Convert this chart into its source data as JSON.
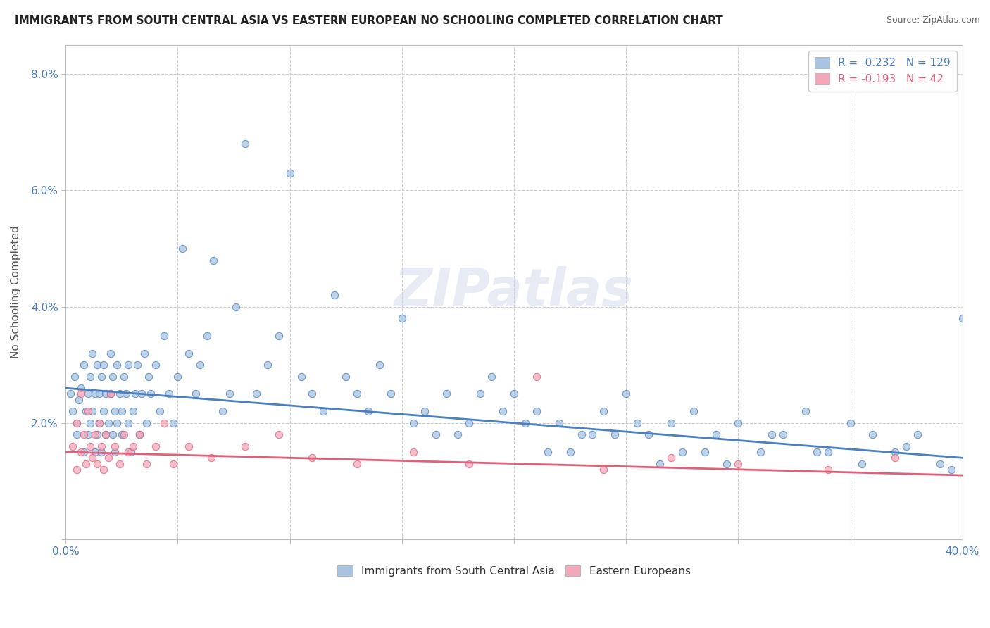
{
  "title": "IMMIGRANTS FROM SOUTH CENTRAL ASIA VS EASTERN EUROPEAN NO SCHOOLING COMPLETED CORRELATION CHART",
  "source": "Source: ZipAtlas.com",
  "ylabel": "No Schooling Completed",
  "xlim": [
    0.0,
    0.4
  ],
  "ylim": [
    0.0,
    0.085
  ],
  "xticks": [
    0.0,
    0.05,
    0.1,
    0.15,
    0.2,
    0.25,
    0.3,
    0.35,
    0.4
  ],
  "yticks": [
    0.0,
    0.02,
    0.04,
    0.06,
    0.08
  ],
  "xticklabels": [
    "0.0%",
    "",
    "",
    "",
    "",
    "",
    "",
    "",
    "40.0%"
  ],
  "yticklabels": [
    "",
    "2.0%",
    "4.0%",
    "6.0%",
    "8.0%"
  ],
  "blue_R": -0.232,
  "blue_N": 129,
  "pink_R": -0.193,
  "pink_N": 42,
  "blue_color": "#a8c4e0",
  "pink_color": "#f4a7b9",
  "blue_line_color": "#4a7fc1",
  "pink_line_color": "#e0607a",
  "legend_blue_label": "Immigrants from South Central Asia",
  "legend_pink_label": "Eastern Europeans",
  "watermark": "ZIPatlas",
  "blue_line_start_y": 0.026,
  "blue_line_end_y": 0.014,
  "pink_line_start_y": 0.015,
  "pink_line_end_y": 0.011,
  "blue_scatter_x": [
    0.002,
    0.003,
    0.004,
    0.005,
    0.005,
    0.006,
    0.007,
    0.008,
    0.008,
    0.009,
    0.01,
    0.01,
    0.011,
    0.011,
    0.012,
    0.012,
    0.013,
    0.013,
    0.014,
    0.014,
    0.015,
    0.015,
    0.016,
    0.016,
    0.017,
    0.017,
    0.018,
    0.018,
    0.019,
    0.02,
    0.02,
    0.021,
    0.021,
    0.022,
    0.022,
    0.023,
    0.023,
    0.024,
    0.025,
    0.025,
    0.026,
    0.027,
    0.028,
    0.028,
    0.029,
    0.03,
    0.031,
    0.032,
    0.033,
    0.034,
    0.035,
    0.036,
    0.037,
    0.038,
    0.04,
    0.042,
    0.044,
    0.046,
    0.048,
    0.05,
    0.052,
    0.055,
    0.058,
    0.06,
    0.063,
    0.066,
    0.07,
    0.073,
    0.076,
    0.08,
    0.085,
    0.09,
    0.095,
    0.1,
    0.105,
    0.11,
    0.115,
    0.12,
    0.13,
    0.14,
    0.15,
    0.16,
    0.17,
    0.18,
    0.19,
    0.2,
    0.21,
    0.22,
    0.23,
    0.24,
    0.25,
    0.26,
    0.27,
    0.28,
    0.29,
    0.3,
    0.31,
    0.32,
    0.33,
    0.34,
    0.35,
    0.36,
    0.37,
    0.38,
    0.39,
    0.4,
    0.155,
    0.175,
    0.195,
    0.215,
    0.235,
    0.255,
    0.275,
    0.295,
    0.315,
    0.335,
    0.355,
    0.375,
    0.395,
    0.145,
    0.165,
    0.185,
    0.205,
    0.225,
    0.245,
    0.265,
    0.285,
    0.125,
    0.135
  ],
  "blue_scatter_y": [
    0.025,
    0.022,
    0.028,
    0.02,
    0.018,
    0.024,
    0.026,
    0.03,
    0.015,
    0.022,
    0.025,
    0.018,
    0.028,
    0.02,
    0.032,
    0.022,
    0.025,
    0.015,
    0.03,
    0.018,
    0.025,
    0.02,
    0.028,
    0.015,
    0.022,
    0.03,
    0.018,
    0.025,
    0.02,
    0.025,
    0.032,
    0.018,
    0.028,
    0.022,
    0.015,
    0.03,
    0.02,
    0.025,
    0.022,
    0.018,
    0.028,
    0.025,
    0.02,
    0.03,
    0.015,
    0.022,
    0.025,
    0.03,
    0.018,
    0.025,
    0.032,
    0.02,
    0.028,
    0.025,
    0.03,
    0.022,
    0.035,
    0.025,
    0.02,
    0.028,
    0.05,
    0.032,
    0.025,
    0.03,
    0.035,
    0.048,
    0.022,
    0.025,
    0.04,
    0.068,
    0.025,
    0.03,
    0.035,
    0.063,
    0.028,
    0.025,
    0.022,
    0.042,
    0.025,
    0.03,
    0.038,
    0.022,
    0.025,
    0.02,
    0.028,
    0.025,
    0.022,
    0.02,
    0.018,
    0.022,
    0.025,
    0.018,
    0.02,
    0.022,
    0.018,
    0.02,
    0.015,
    0.018,
    0.022,
    0.015,
    0.02,
    0.018,
    0.015,
    0.018,
    0.013,
    0.038,
    0.02,
    0.018,
    0.022,
    0.015,
    0.018,
    0.02,
    0.015,
    0.013,
    0.018,
    0.015,
    0.013,
    0.016,
    0.012,
    0.025,
    0.018,
    0.025,
    0.02,
    0.015,
    0.018,
    0.013,
    0.015,
    0.028,
    0.022
  ],
  "pink_scatter_x": [
    0.003,
    0.005,
    0.007,
    0.008,
    0.009,
    0.01,
    0.011,
    0.012,
    0.013,
    0.014,
    0.015,
    0.016,
    0.017,
    0.018,
    0.019,
    0.02,
    0.022,
    0.024,
    0.026,
    0.028,
    0.03,
    0.033,
    0.036,
    0.04,
    0.044,
    0.048,
    0.055,
    0.065,
    0.08,
    0.095,
    0.11,
    0.13,
    0.155,
    0.18,
    0.21,
    0.24,
    0.27,
    0.3,
    0.34,
    0.37,
    0.005,
    0.007
  ],
  "pink_scatter_y": [
    0.016,
    0.02,
    0.015,
    0.018,
    0.013,
    0.022,
    0.016,
    0.014,
    0.018,
    0.013,
    0.02,
    0.016,
    0.012,
    0.018,
    0.014,
    0.025,
    0.016,
    0.013,
    0.018,
    0.015,
    0.016,
    0.018,
    0.013,
    0.016,
    0.02,
    0.013,
    0.016,
    0.014,
    0.016,
    0.018,
    0.014,
    0.013,
    0.015,
    0.013,
    0.028,
    0.012,
    0.014,
    0.013,
    0.012,
    0.014,
    0.012,
    0.025
  ]
}
